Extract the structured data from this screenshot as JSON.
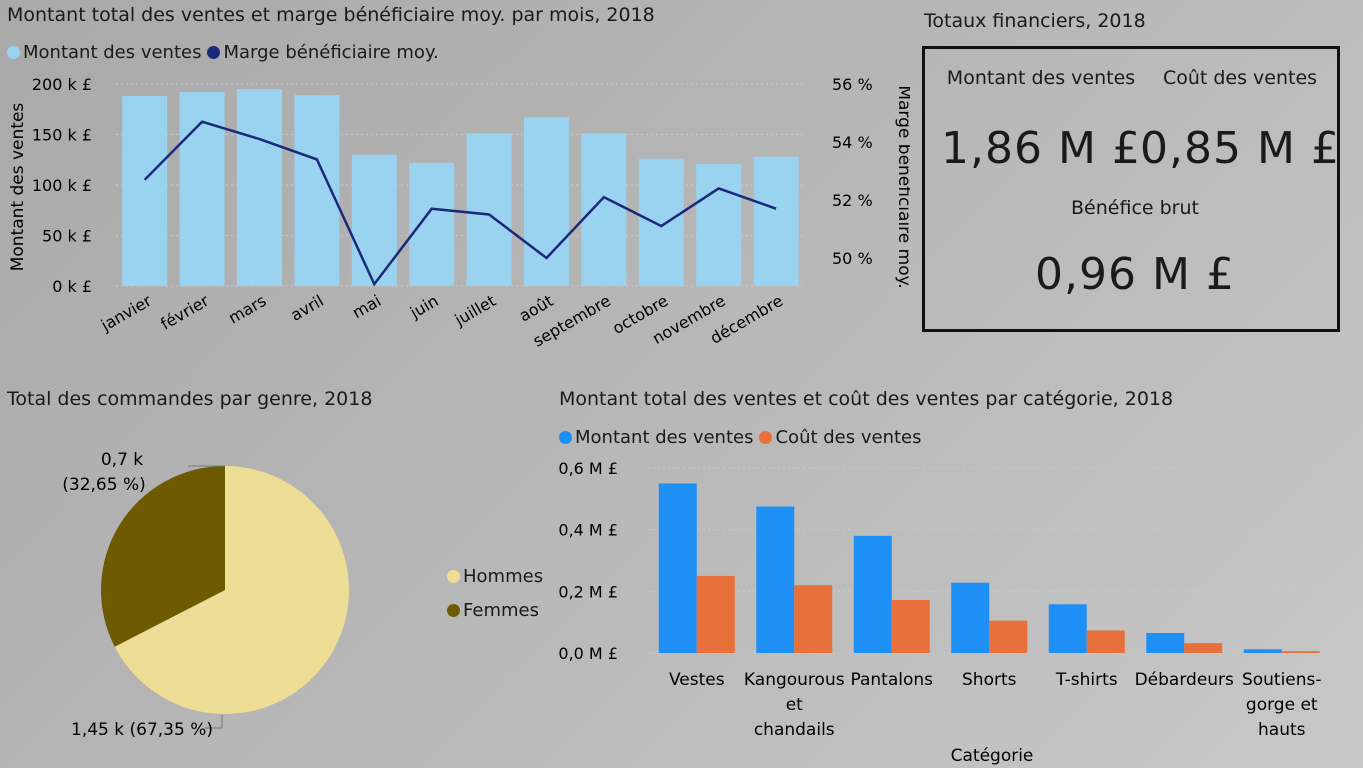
{
  "combo": {
    "title": "Montant total des ventes et marge bénéficiaire moy. par mois, 2018",
    "legend": [
      {
        "label": "Montant des ventes",
        "color": "#9ad3f0"
      },
      {
        "label": "Marge bénéficiaire moy.",
        "color": "#1a2a7a"
      }
    ],
    "y_left_label": "Montant des ventes",
    "y_right_label": "Marge bénéficiaire moy.",
    "y_left_ticks": [
      "0 k £",
      "50 k £",
      "100 k £",
      "150 k £",
      "200 k £"
    ],
    "y_right_ticks": [
      "50 %",
      "52 %",
      "54 %",
      "56 %"
    ]
  },
  "kpi": {
    "title": "Totaux financiers, 2018",
    "sales_label": "Montant des ventes",
    "sales_value": "1,86 M £",
    "cost_label": "Coût des ventes",
    "cost_value": "0,85 M £",
    "profit_label": "Bénéfice brut",
    "profit_value": "0,96 M £"
  },
  "pie": {
    "title": "Total des commandes par genre, 2018",
    "label_women_value": "0,7 k",
    "label_women_pct": "(32,65 %)",
    "label_men": "1,45 k (67,35 %)",
    "legend": [
      {
        "label": "Hommes",
        "color": "#eedd95"
      },
      {
        "label": "Femmes",
        "color": "#6e5a00"
      }
    ]
  },
  "cat": {
    "title": "Montant total des ventes et coût des ventes par catégorie, 2018",
    "legend": [
      {
        "label": "Montant des ventes",
        "color": "#1e90f5"
      },
      {
        "label": "Coût des ventes",
        "color": "#e8703a"
      }
    ],
    "y_ticks": [
      "0,0 M £",
      "0,2 M £",
      "0,4 M £",
      "0,6 M £"
    ],
    "x_title": "Catégorie",
    "category_lines": [
      [
        "Vestes"
      ],
      [
        "Kangourous",
        "et",
        "chandails"
      ],
      [
        "Pantalons"
      ],
      [
        "Shorts"
      ],
      [
        "T-shirts"
      ],
      [
        "Débardeurs"
      ],
      [
        "Soutiens-",
        "gorge et",
        "hauts"
      ]
    ]
  },
  "chart_data": [
    {
      "type": "bar",
      "title": "Montant total des ventes et marge bénéficiaire moy. par mois, 2018",
      "categories": [
        "janvier",
        "février",
        "mars",
        "avril",
        "mai",
        "juin",
        "juillet",
        "août",
        "septembre",
        "octobre",
        "novembre",
        "décembre"
      ],
      "series": [
        {
          "name": "Montant des ventes",
          "type": "bar",
          "axis": "left",
          "values": [
            188,
            192,
            195,
            189,
            130,
            122,
            151,
            167,
            151,
            126,
            121,
            128
          ]
        },
        {
          "name": "Marge bénéficiaire moy.",
          "type": "line",
          "axis": "right",
          "values": [
            52.7,
            54.7,
            54.1,
            53.4,
            49.1,
            51.7,
            51.5,
            50.0,
            52.1,
            51.1,
            52.4,
            51.7
          ]
        }
      ],
      "ylabel": "Montant des ventes",
      "ylabel_right": "Marge bénéficiaire moy.",
      "ylim": [
        0,
        200
      ],
      "ylim_right": [
        50,
        56
      ],
      "grid": true,
      "legend": "top-left"
    },
    {
      "type": "pie",
      "title": "Total des commandes par genre, 2018",
      "categories": [
        "Hommes",
        "Femmes"
      ],
      "values": [
        1.45,
        0.7
      ],
      "percentages": [
        67.35,
        32.65
      ],
      "legend": "right"
    },
    {
      "type": "bar",
      "title": "Montant total des ventes et coût des ventes par catégorie, 2018",
      "categories": [
        "Vestes",
        "Kangourous et chandails",
        "Pantalons",
        "Shorts",
        "T-shirts",
        "Débardeurs",
        "Soutiens-gorge et hauts"
      ],
      "series": [
        {
          "name": "Montant des ventes",
          "values": [
            0.55,
            0.475,
            0.38,
            0.228,
            0.158,
            0.065,
            0.012
          ]
        },
        {
          "name": "Coût des ventes",
          "values": [
            0.25,
            0.22,
            0.172,
            0.105,
            0.073,
            0.032,
            0.006
          ]
        }
      ],
      "xlabel": "Catégorie",
      "ylim": [
        0,
        0.6
      ],
      "grid": true,
      "legend": "top-left"
    }
  ]
}
